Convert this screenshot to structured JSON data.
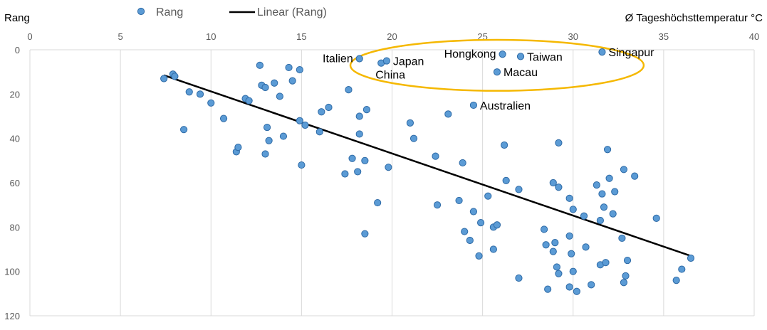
{
  "chart_data": {
    "type": "scatter",
    "ylabel": "Rang",
    "xlabel": "Ø Tageshöchsttemperatur °C",
    "xlim": [
      0,
      40
    ],
    "ylim": [
      0,
      120
    ],
    "y_inverted": true,
    "x_axis_position": "top",
    "x_ticks": [
      0,
      5,
      10,
      15,
      20,
      25,
      30,
      35,
      40
    ],
    "y_ticks": [
      0,
      20,
      40,
      60,
      80,
      100,
      120
    ],
    "grid": "vertical",
    "legend": {
      "position": "top",
      "entries": [
        "Rang",
        "Linear (Rang)"
      ]
    },
    "colors": {
      "point_fill": "#5b9bd5",
      "point_stroke": "#2e6aa6",
      "trendline": "#000000",
      "highlight_ellipse": "#f5b800",
      "gridline": "#d9d9d9"
    },
    "series": [
      {
        "name": "Rang",
        "points": [
          [
            7.4,
            13
          ],
          [
            7.9,
            11
          ],
          [
            8.0,
            12
          ],
          [
            8.5,
            36
          ],
          [
            8.8,
            19
          ],
          [
            9.4,
            20
          ],
          [
            10.0,
            24
          ],
          [
            10.7,
            31
          ],
          [
            11.4,
            46
          ],
          [
            11.5,
            44
          ],
          [
            11.9,
            22
          ],
          [
            12.1,
            23
          ],
          [
            12.7,
            7
          ],
          [
            12.8,
            16
          ],
          [
            13.0,
            17
          ],
          [
            13.0,
            47
          ],
          [
            13.1,
            35
          ],
          [
            13.2,
            41
          ],
          [
            13.5,
            15
          ],
          [
            13.8,
            21
          ],
          [
            14.0,
            39
          ],
          [
            14.3,
            8
          ],
          [
            14.5,
            14
          ],
          [
            14.9,
            9
          ],
          [
            14.9,
            32
          ],
          [
            15.0,
            52
          ],
          [
            15.2,
            34
          ],
          [
            16.0,
            37
          ],
          [
            16.1,
            28
          ],
          [
            16.5,
            26
          ],
          [
            17.4,
            56
          ],
          [
            17.6,
            18
          ],
          [
            17.8,
            49
          ],
          [
            18.1,
            55
          ],
          [
            18.2,
            30
          ],
          [
            18.2,
            38
          ],
          [
            18.2,
            4
          ],
          [
            18.5,
            50
          ],
          [
            18.5,
            83
          ],
          [
            18.6,
            27
          ],
          [
            19.2,
            69
          ],
          [
            19.4,
            6
          ],
          [
            19.7,
            5
          ],
          [
            19.8,
            53
          ],
          [
            21.0,
            33
          ],
          [
            21.2,
            40
          ],
          [
            22.4,
            48
          ],
          [
            22.5,
            70
          ],
          [
            23.1,
            29
          ],
          [
            23.9,
            51
          ],
          [
            23.7,
            68
          ],
          [
            24.0,
            82
          ],
          [
            24.3,
            86
          ],
          [
            24.5,
            25
          ],
          [
            24.5,
            73
          ],
          [
            24.8,
            93
          ],
          [
            24.9,
            78
          ],
          [
            25.3,
            66
          ],
          [
            25.6,
            80
          ],
          [
            25.6,
            90
          ],
          [
            25.8,
            79
          ],
          [
            25.8,
            10
          ],
          [
            26.1,
            2
          ],
          [
            26.2,
            43
          ],
          [
            26.3,
            59
          ],
          [
            27.0,
            63
          ],
          [
            27.0,
            103
          ],
          [
            27.1,
            3
          ],
          [
            28.4,
            81
          ],
          [
            28.5,
            88
          ],
          [
            28.6,
            108
          ],
          [
            28.9,
            91
          ],
          [
            28.9,
            60
          ],
          [
            29.0,
            87
          ],
          [
            29.1,
            98
          ],
          [
            29.2,
            62
          ],
          [
            29.2,
            101
          ],
          [
            29.2,
            42
          ],
          [
            29.8,
            67
          ],
          [
            29.8,
            84
          ],
          [
            29.8,
            107
          ],
          [
            29.9,
            92
          ],
          [
            30.0,
            72
          ],
          [
            30.0,
            100
          ],
          [
            30.2,
            109
          ],
          [
            30.6,
            75
          ],
          [
            30.7,
            89
          ],
          [
            31.0,
            106
          ],
          [
            31.3,
            61
          ],
          [
            31.5,
            97
          ],
          [
            31.5,
            77
          ],
          [
            31.6,
            1
          ],
          [
            31.6,
            65
          ],
          [
            31.7,
            71
          ],
          [
            31.8,
            96
          ],
          [
            31.9,
            45
          ],
          [
            32.0,
            58
          ],
          [
            32.2,
            74
          ],
          [
            32.3,
            64
          ],
          [
            32.7,
            85
          ],
          [
            32.8,
            105
          ],
          [
            32.8,
            54
          ],
          [
            32.9,
            102
          ],
          [
            33.0,
            95
          ],
          [
            33.4,
            57
          ],
          [
            34.6,
            76
          ],
          [
            35.7,
            104
          ],
          [
            36.0,
            99
          ],
          [
            36.5,
            94
          ]
        ]
      },
      {
        "name": "Linear (Rang)",
        "trendline": true,
        "from": [
          7.4,
          11.5
        ],
        "to": [
          36.5,
          93
        ]
      }
    ],
    "annotations": [
      {
        "text": "Italien",
        "x": 18.2,
        "y": 4,
        "anchor": "left-of-point"
      },
      {
        "text": "Japan",
        "x": 19.7,
        "y": 5,
        "anchor": "right-of-point"
      },
      {
        "text": "China",
        "x": 19.4,
        "y": 6,
        "anchor": "below-point"
      },
      {
        "text": "Hongkong",
        "x": 26.1,
        "y": 2,
        "anchor": "left-of-point"
      },
      {
        "text": "Taiwan",
        "x": 27.1,
        "y": 3,
        "anchor": "right-of-point"
      },
      {
        "text": "Singapur",
        "x": 31.6,
        "y": 1,
        "anchor": "right-of-point"
      },
      {
        "text": "Macau",
        "x": 25.8,
        "y": 10,
        "anchor": "right-of-point"
      },
      {
        "text": "Australien",
        "x": 24.5,
        "y": 25,
        "anchor": "right-of-point"
      }
    ],
    "highlight_region": {
      "shape": "ellipse",
      "center": [
        25.8,
        7
      ],
      "radius_x": 8.1,
      "radius_y": 11.5
    }
  }
}
